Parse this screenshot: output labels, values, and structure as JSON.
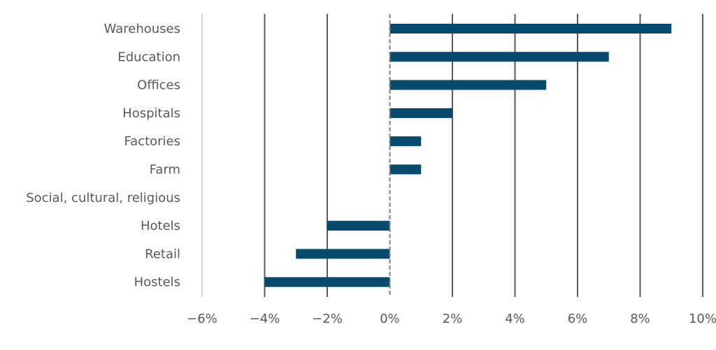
{
  "chart_data": {
    "type": "bar",
    "orientation": "horizontal",
    "categories": [
      "Warehouses",
      "Education",
      "Offices",
      "Hospitals",
      "Factories",
      "Farm",
      "Social, cultural, religious",
      "Hotels",
      "Retail",
      "Hostels"
    ],
    "values": [
      9,
      7,
      5,
      2,
      1,
      1,
      0,
      -2,
      -3,
      -4
    ],
    "xlim": [
      -6,
      10
    ],
    "xticks": [
      -6,
      -4,
      -2,
      0,
      2,
      4,
      6,
      8,
      10
    ],
    "xtick_labels": [
      "−6%",
      "−4%",
      "−2%",
      "0%",
      "2%",
      "4%",
      "6%",
      "8%",
      "10%"
    ],
    "grid": true,
    "legend": "none",
    "colors": {
      "bar": "#064A6E",
      "grid": "#595959",
      "zero_line": "#808080",
      "text": "#595959"
    }
  }
}
